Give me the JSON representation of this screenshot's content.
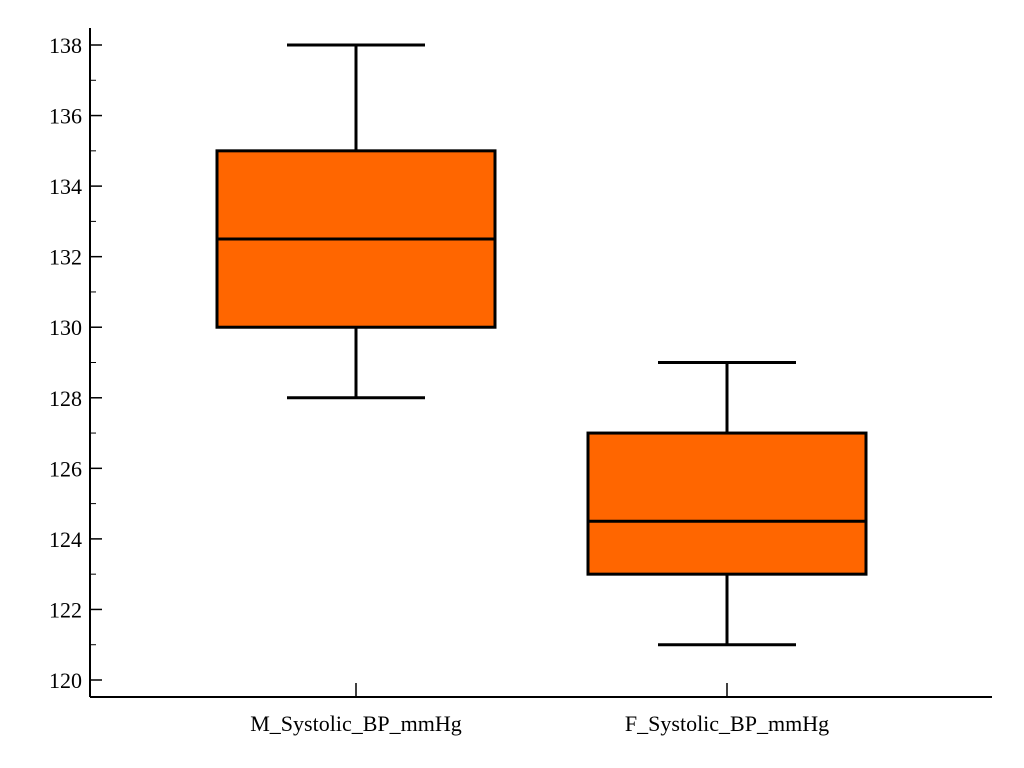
{
  "chart_data": {
    "type": "box",
    "title": "",
    "xlabel": "",
    "ylabel": "",
    "ylim": [
      120,
      138
    ],
    "y_ticks": [
      120,
      122,
      124,
      126,
      128,
      130,
      132,
      134,
      136,
      138
    ],
    "y_minor_step": 1,
    "grid": false,
    "box_color": "#FF6600",
    "categories": [
      "M_Systolic_BP_mmHg",
      "F_Systolic_BP_mmHg"
    ],
    "boxes": [
      {
        "label": "M_Systolic_BP_mmHg",
        "min": 128,
        "q1": 130,
        "median": 132.5,
        "q3": 135,
        "max": 138
      },
      {
        "label": "F_Systolic_BP_mmHg",
        "min": 121,
        "q1": 123,
        "median": 124.5,
        "q3": 127,
        "max": 129
      }
    ]
  }
}
